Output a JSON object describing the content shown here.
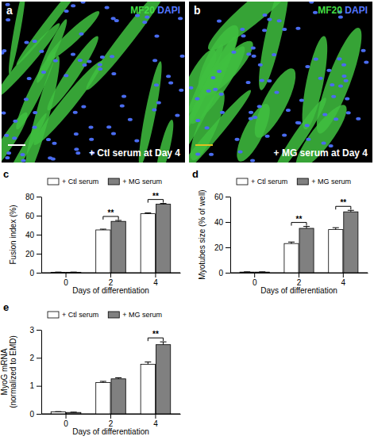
{
  "images": [
    {
      "panel": "a",
      "stain": [
        "MF20",
        "DAPI"
      ],
      "caption": "+ Ctl serum at Day 4"
    },
    {
      "panel": "b",
      "stain": [
        "MF20",
        "DAPI"
      ],
      "caption": "+ MG serum at Day 4"
    }
  ],
  "chart_data": [
    {
      "type": "bar",
      "panel": "c",
      "ylabel": [
        "Fusion index (%)"
      ],
      "xlabel": "Days of differentiation",
      "categories": [
        "0",
        "2",
        "4"
      ],
      "ylim": [
        0,
        80
      ],
      "yticks": [
        0,
        20,
        40,
        60,
        80
      ],
      "legend": "top",
      "series": [
        {
          "name": "+ Ctl serum",
          "color": "#ffffff",
          "values": [
            0.5,
            45,
            62
          ],
          "errors": [
            0.2,
            0.8,
            0.9
          ]
        },
        {
          "name": "+ MG serum",
          "color": "#808080",
          "values": [
            0.5,
            54,
            72
          ],
          "errors": [
            0.2,
            1,
            0.8
          ]
        }
      ],
      "annotations": [
        {
          "text": "**",
          "category": "2"
        },
        {
          "text": "**",
          "category": "4"
        }
      ]
    },
    {
      "type": "bar",
      "panel": "d",
      "ylabel": [
        "Myotubes size (% of well)"
      ],
      "xlabel": "Days of differentiation",
      "categories": [
        "0",
        "2",
        "4"
      ],
      "ylim": [
        0,
        60
      ],
      "yticks": [
        0,
        20,
        40,
        60
      ],
      "legend": "top",
      "series": [
        {
          "name": "+ Ctl serum",
          "color": "#ffffff",
          "values": [
            0.5,
            23,
            34
          ],
          "errors": [
            0.2,
            1.2,
            1.5
          ]
        },
        {
          "name": "+ MG serum",
          "color": "#808080",
          "values": [
            0.5,
            35,
            48
          ],
          "errors": [
            0.2,
            1.5,
            1.2
          ]
        }
      ],
      "annotations": [
        {
          "text": "**",
          "category": "2"
        },
        {
          "text": "**",
          "category": "4"
        }
      ]
    },
    {
      "type": "bar",
      "panel": "e",
      "ylabel": [
        "MyoG mRNA",
        "(normalized to EMD)"
      ],
      "xlabel": "Days of differentiation",
      "categories": [
        "0",
        "2",
        "4"
      ],
      "ylim": [
        0,
        3
      ],
      "yticks": [
        0,
        1,
        2,
        3
      ],
      "legend": "top",
      "series": [
        {
          "name": "+ Ctl serum",
          "color": "#ffffff",
          "values": [
            0.07,
            1.12,
            1.77
          ],
          "errors": [
            0.01,
            0.04,
            0.08
          ]
        },
        {
          "name": "+ MG serum",
          "color": "#808080",
          "values": [
            0.05,
            1.25,
            2.47
          ],
          "errors": [
            0.01,
            0.04,
            0.1
          ]
        }
      ],
      "annotations": [
        {
          "text": "**",
          "category": "4"
        }
      ]
    }
  ]
}
